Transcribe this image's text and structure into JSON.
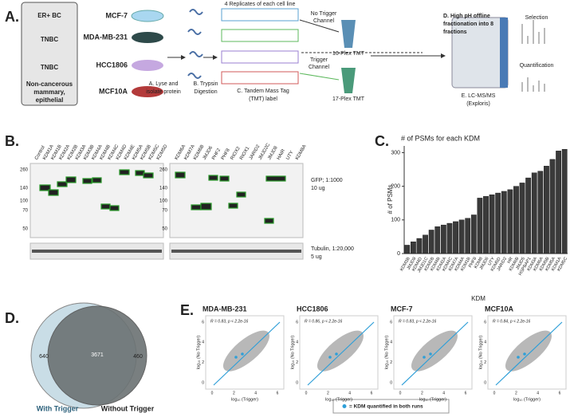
{
  "panel_a": {
    "letter": "A.",
    "groups": [
      "ER+ BC",
      "TNBC",
      "TNBC"
    ],
    "group_last_lines": [
      "Non-cancerous",
      "mammary,",
      "epithelial"
    ],
    "cell_lines": [
      "MCF-7",
      "MDA-MB-231",
      "HCC1806",
      "MCF10A"
    ],
    "replicates": "4  Replicates of each cell line",
    "step_a": [
      "A. Lyse and",
      "isolate protein"
    ],
    "step_b": [
      "B. Trypsin",
      "Digestion"
    ],
    "step_c": [
      "C. Tandem Mass Tag",
      "(TMT) label"
    ],
    "no_trigger": [
      "No Trigger",
      "Channel"
    ],
    "trigger": [
      "Trigger",
      "Channel"
    ],
    "plex16": "16-Plex TMT",
    "plex17": "17-Plex TMT",
    "step_d": [
      "D. High pH offline",
      "fractionation into 8",
      "fractions"
    ],
    "step_e": [
      "E. LC-MS/MS",
      "(Exploris)"
    ],
    "selection": "Selection",
    "quantification": "Quantification"
  },
  "panel_b": {
    "letter": "B.",
    "lanes_left": [
      "Control",
      "KDM1A",
      "KDM1B",
      "KDM2A",
      "KDM2B",
      "KDM3A",
      "KDM3B",
      "KDM4A",
      "KDM4B",
      "KDM4C",
      "KDM4D",
      "KDM4E",
      "KDM5A",
      "KDM5B",
      "KDM5C",
      "KDM5D"
    ],
    "lanes_right": [
      "KDM6A",
      "KDM7A",
      "KDM6B",
      "JMJD6",
      "PHF2",
      "PHF8",
      "RIOX2",
      "RIOX1",
      "JARID2",
      "JMJD2C",
      "JMJD8",
      "HAIR",
      "UTY",
      "KDM8A"
    ],
    "markers": [
      "260",
      "140",
      "100",
      "70",
      "50"
    ],
    "gfp": [
      "GFP; 1:1000",
      "10 ug"
    ],
    "tubulin": [
      "Tubulin, 1:20,000",
      "5 ug"
    ]
  },
  "chart_data": {
    "type": "bar",
    "letter": "C.",
    "title": "# of PSMs for each KDM",
    "y_label": "# of PSMs",
    "x_label": "KDM",
    "categories": [
      "KDM3B",
      "JMJD8",
      "KDM4D",
      "JMJD1C",
      "KDM2B",
      "KDM4B",
      "KDM2A",
      "KDM4C",
      "KDM7A",
      "KDM4A",
      "KDM1B",
      "PHF8",
      "KDM8",
      "JMJD6",
      "UTY",
      "KDM5D",
      "JARID2",
      "HR",
      "KDM6B",
      "JMJD5",
      "HSPBAP1",
      "KDM3A",
      "KDM6A",
      "KDM5B",
      "KDM5A",
      "KDM1A",
      "KDM5C"
    ],
    "values": [
      25,
      35,
      45,
      55,
      70,
      80,
      85,
      90,
      95,
      100,
      105,
      115,
      165,
      170,
      175,
      180,
      185,
      190,
      200,
      210,
      225,
      240,
      245,
      260,
      280,
      305,
      310
    ],
    "color": "#3a3a3a",
    "ylim": [
      0,
      320
    ],
    "yticks": [
      0,
      100,
      200,
      300
    ]
  },
  "panel_d": {
    "letter": "D.",
    "left_only": "640",
    "both": "3671",
    "right_only": "460",
    "with": "With Trigger",
    "without": "Without Trigger"
  },
  "panel_e": {
    "letter": "E.",
    "plots": [
      {
        "title": "MDA-MB-231",
        "stat": "R = 0.83, p < 2.2e-16"
      },
      {
        "title": "HCC1806",
        "stat": "R = 0.86, p < 2.2e-16"
      },
      {
        "title": "MCF-7",
        "stat": "R = 0.83, p < 2.2e-16"
      },
      {
        "title": "MCF10A",
        "stat": "R = 0.84, p < 2.2e-16"
      }
    ],
    "x_label": "log₁₀ (Trigger)",
    "y_label": "log₁₀ (No Trigger)",
    "xticks": [
      "0",
      "2",
      "4",
      "6"
    ],
    "yticks": [
      "0",
      "2",
      "4",
      "6"
    ],
    "legend": "= KDM quantified in both runs"
  }
}
